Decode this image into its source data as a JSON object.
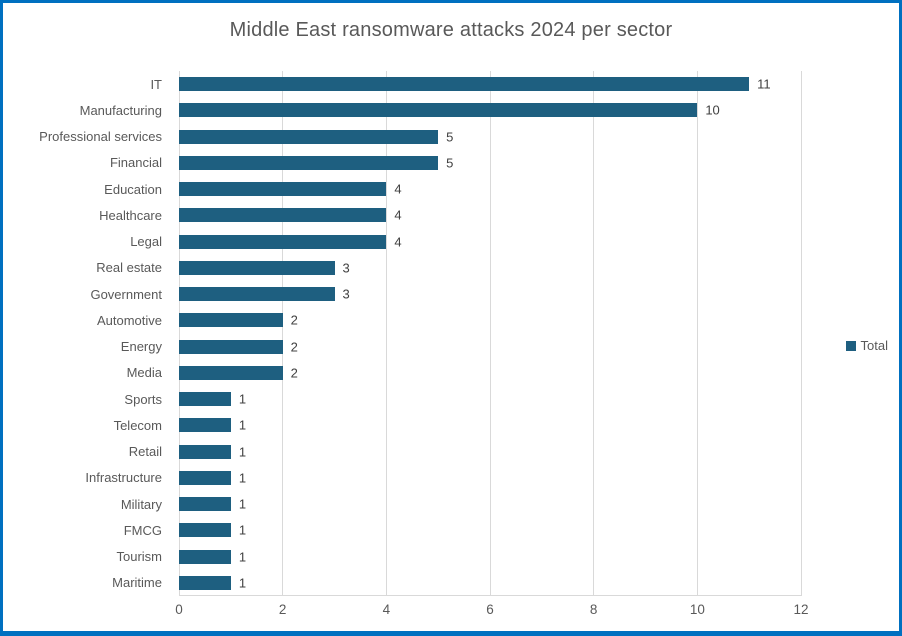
{
  "title": "Middle East ransomware attacks 2024 per sector",
  "legend": {
    "label": "Total"
  },
  "colors": {
    "bar": "#1E5F80",
    "frame_border": "#0070C0",
    "gridline": "#D9D9D9",
    "axis_line": "#D9D9D9",
    "title_text": "#595959",
    "axis_text": "#595959",
    "value_text": "#404040"
  },
  "chart_data": {
    "type": "bar",
    "orientation": "horizontal",
    "title": "Middle East ransomware attacks 2024 per sector",
    "series_name": "Total",
    "categories": [
      "IT",
      "Manufacturing",
      "Professional services",
      "Financial",
      "Education",
      "Healthcare",
      "Legal",
      "Real estate",
      "Government",
      "Automotive",
      "Energy",
      "Media",
      "Sports",
      "Telecom",
      "Retail",
      "Infrastructure",
      "Military",
      "FMCG",
      "Tourism",
      "Maritime"
    ],
    "values": [
      11,
      10,
      5,
      5,
      4,
      4,
      4,
      3,
      3,
      2,
      2,
      2,
      1,
      1,
      1,
      1,
      1,
      1,
      1,
      1
    ],
    "x_ticks": [
      0,
      2,
      4,
      6,
      8,
      10,
      12
    ],
    "xlim": [
      0,
      12
    ],
    "grid": "vertical",
    "legend_position": "right",
    "data_labels": true
  }
}
